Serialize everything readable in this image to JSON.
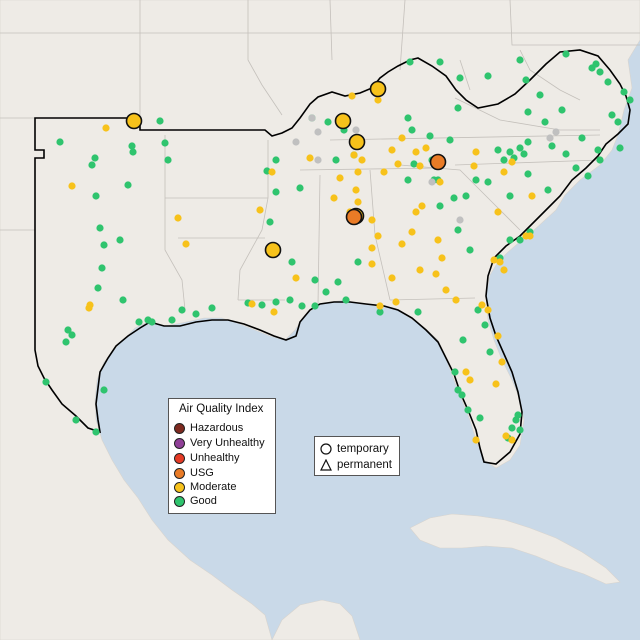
{
  "map": {
    "colors": {
      "water": "#c9d9e8",
      "land": "#eeebe6",
      "land_outer": "#f1efea",
      "region_border": "#000000",
      "state_lines": "#c4c0bb"
    },
    "aqi_colors": {
      "hazardous": "#7e2a1f",
      "very_unhealthy": "#8f3f97",
      "unhealthy": "#e53a25",
      "usg": "#e97b26",
      "moderate": "#f7c21b",
      "good": "#2fc46e",
      "no_data": "#c0c0c0"
    }
  },
  "legend": {
    "title": "Air Quality Index",
    "items": [
      {
        "label": "Hazardous",
        "color": "#7e2a1f"
      },
      {
        "label": "Very Unhealthy",
        "color": "#8f3f97"
      },
      {
        "label": "Unhealthy",
        "color": "#e53a25"
      },
      {
        "label": "USG",
        "color": "#e97b26"
      },
      {
        "label": "Moderate",
        "color": "#f7c21b"
      },
      {
        "label": "Good",
        "color": "#2fc46e"
      }
    ]
  },
  "shape_legend": {
    "items": [
      {
        "label": "temporary",
        "shape": "circle"
      },
      {
        "label": "permanent",
        "shape": "triangle"
      }
    ]
  }
}
